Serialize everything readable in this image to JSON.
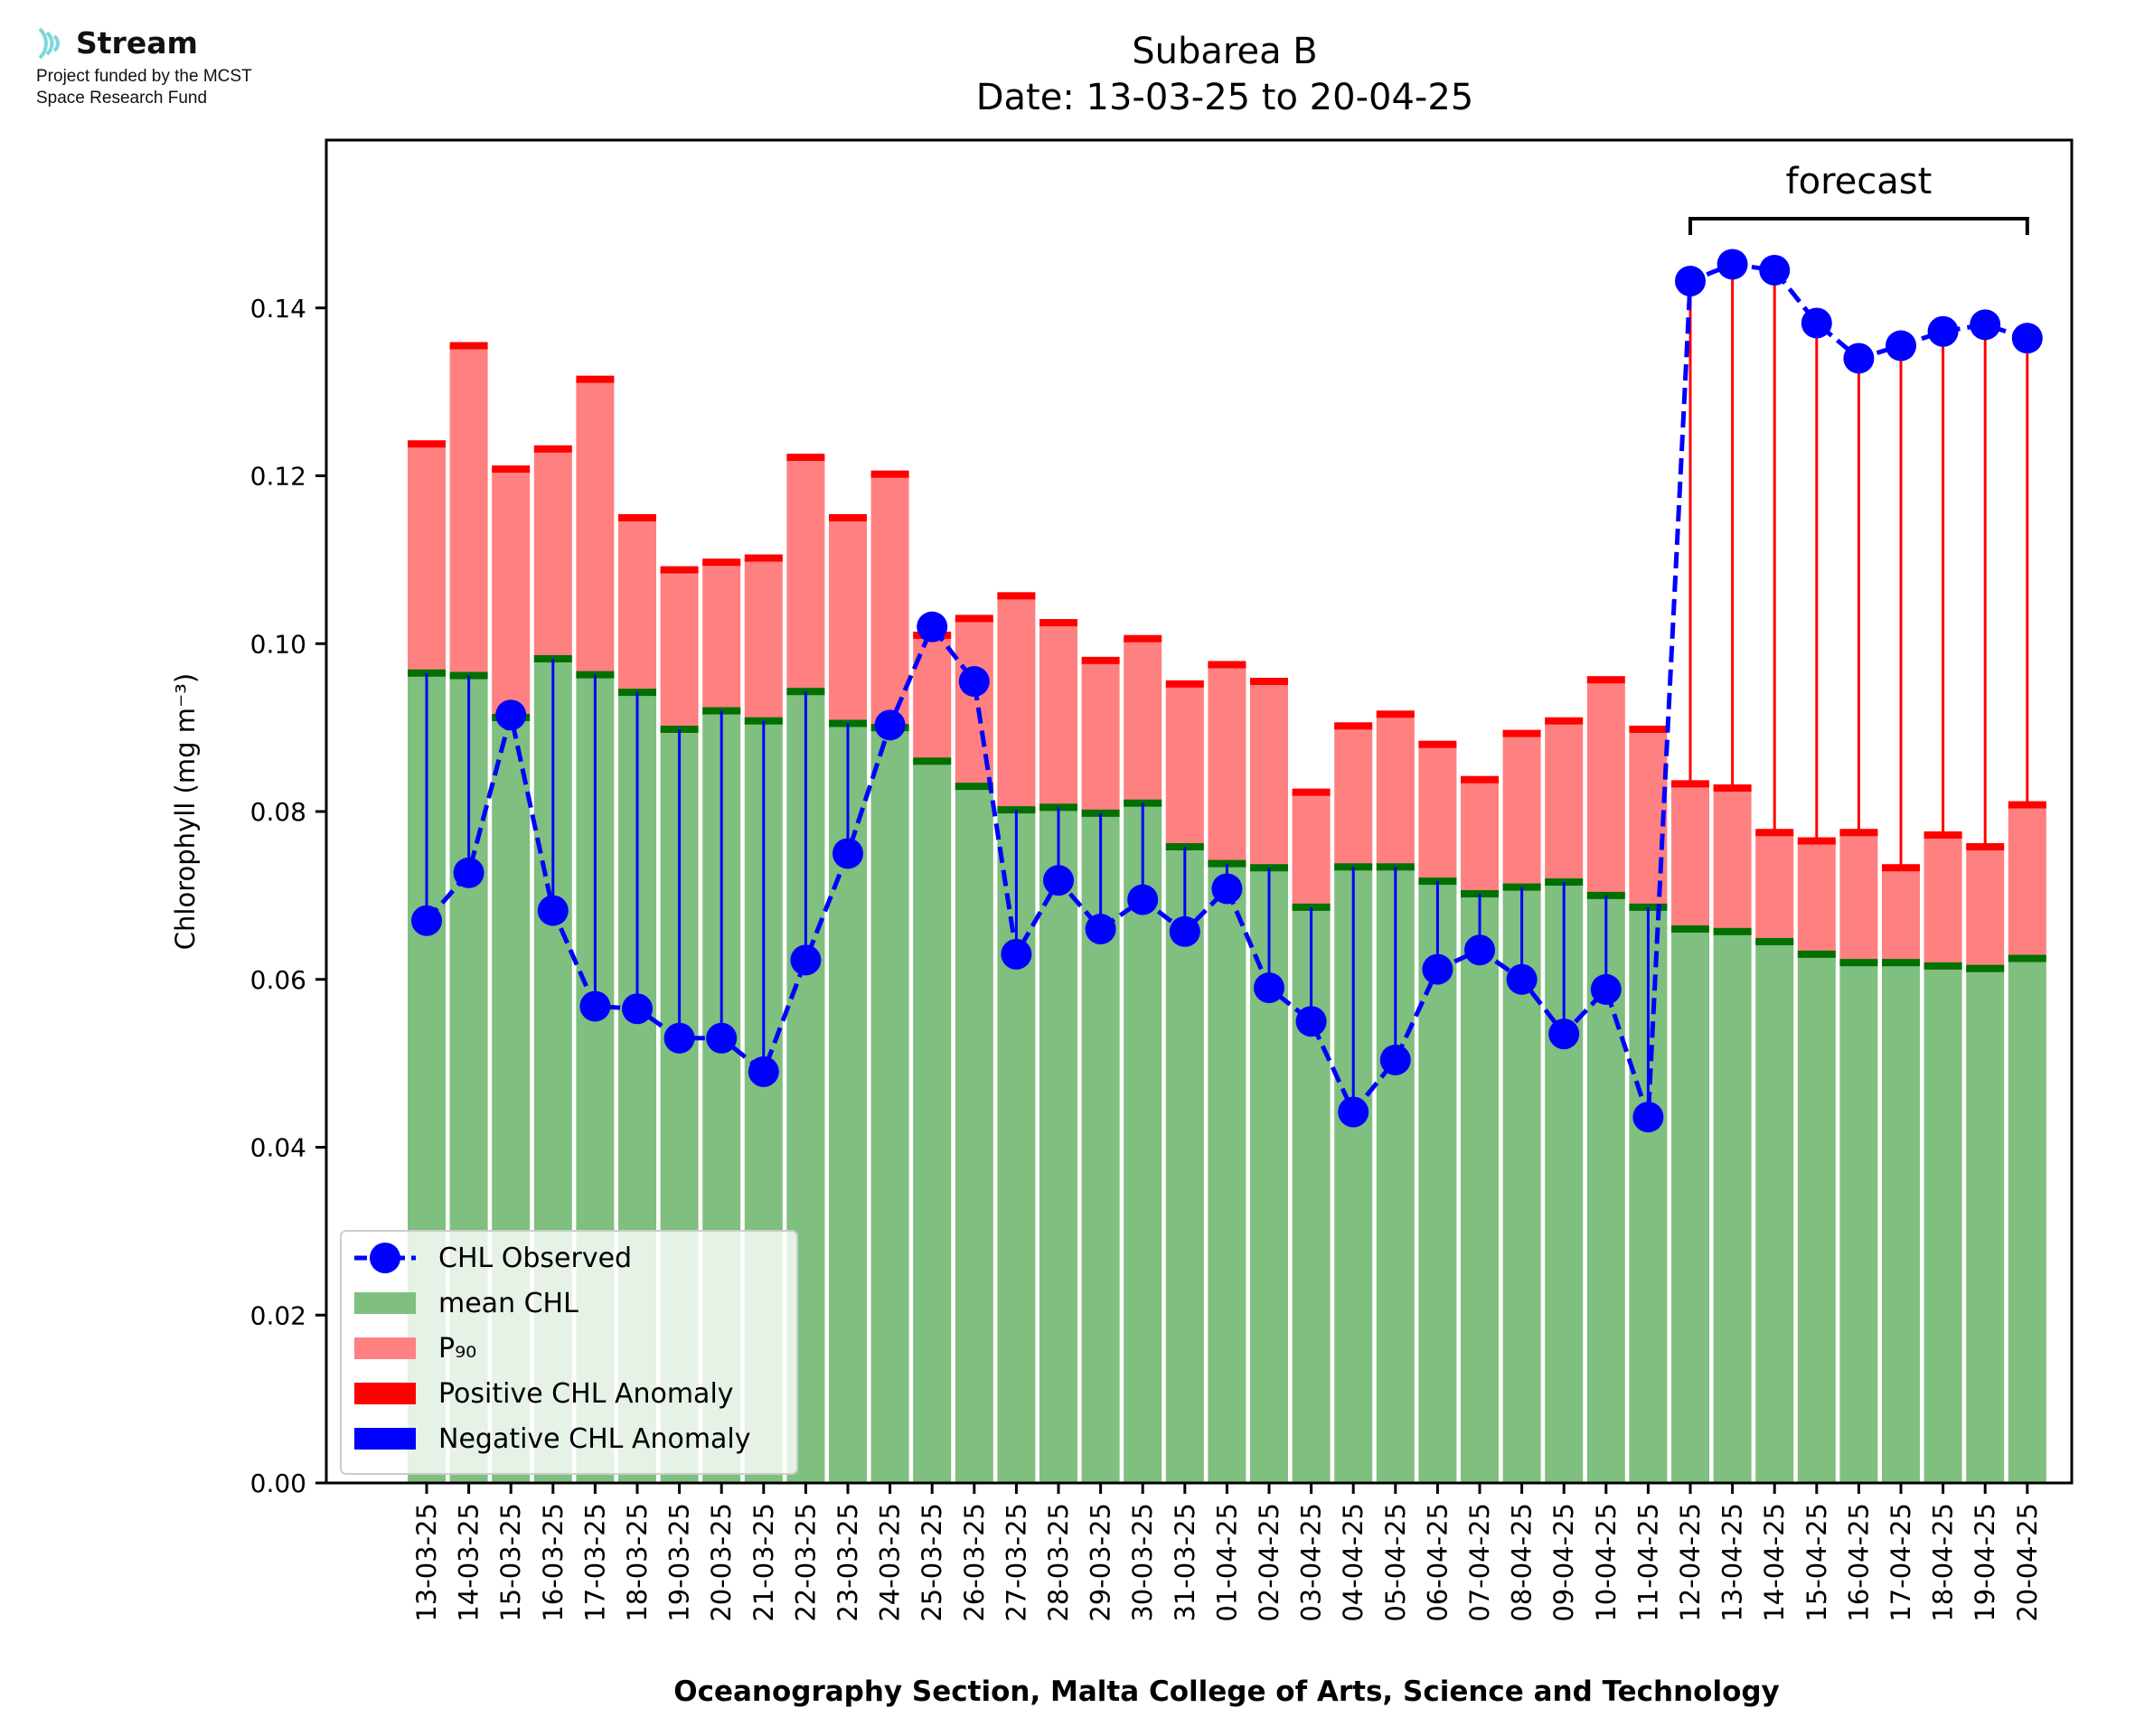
{
  "logo": {
    "brand": "Stream",
    "line1": "Project funded by the MCST",
    "line2": "Space Research Fund",
    "icon": "stream-waves-icon",
    "color": "#7fd8d8"
  },
  "chart_data": {
    "type": "bar",
    "title_line1": "Subarea B",
    "title_line2": "Date: 13-03-25 to 20-04-25",
    "xlabel": "Oceanography Section, Malta College of Arts, Science and Technology",
    "ylabel": "Chlorophyll (mg m⁻³)",
    "ylim": [
      0,
      0.16
    ],
    "yticks": [
      "0.00",
      "0.02",
      "0.04",
      "0.06",
      "0.08",
      "0.10",
      "0.12",
      "0.14"
    ],
    "ytick_values": [
      0,
      0.02,
      0.04,
      0.06,
      0.08,
      0.1,
      0.12,
      0.14
    ],
    "forecast_label": "forecast",
    "forecast_range": [
      "12-04-25",
      "20-04-25"
    ],
    "categories": [
      "13-03-25",
      "14-03-25",
      "15-03-25",
      "16-03-25",
      "17-03-25",
      "18-03-25",
      "19-03-25",
      "20-03-25",
      "21-03-25",
      "22-03-25",
      "23-03-25",
      "24-03-25",
      "25-03-25",
      "26-03-25",
      "27-03-25",
      "28-03-25",
      "29-03-25",
      "30-03-25",
      "31-03-25",
      "01-04-25",
      "02-04-25",
      "03-04-25",
      "04-04-25",
      "05-04-25",
      "06-04-25",
      "07-04-25",
      "08-04-25",
      "09-04-25",
      "10-04-25",
      "11-04-25",
      "12-04-25",
      "13-04-25",
      "14-04-25",
      "15-04-25",
      "16-04-25",
      "17-04-25",
      "18-04-25",
      "19-04-25",
      "20-04-25"
    ],
    "series": [
      {
        "name": "mean CHL",
        "color": "#7fbf7f",
        "edge": "#007000",
        "values": [
          0.0965,
          0.0962,
          0.0912,
          0.0982,
          0.0963,
          0.0942,
          0.0898,
          0.092,
          0.0908,
          0.0943,
          0.0905,
          0.09,
          0.086,
          0.083,
          0.0802,
          0.0805,
          0.0798,
          0.081,
          0.0758,
          0.0738,
          0.0733,
          0.0686,
          0.0734,
          0.0734,
          0.0717,
          0.0702,
          0.071,
          0.0716,
          0.07,
          0.0686,
          0.066,
          0.0657,
          0.0645,
          0.063,
          0.062,
          0.062,
          0.0616,
          0.0613,
          0.0625
        ]
      },
      {
        "name": "P₉₀",
        "color": "#ff8080",
        "edge": "#ff0000",
        "values": [
          0.1238,
          0.1355,
          0.1208,
          0.1232,
          0.1315,
          0.115,
          0.1088,
          0.1097,
          0.1102,
          0.1222,
          0.115,
          0.1202,
          0.101,
          0.103,
          0.1057,
          0.1025,
          0.098,
          0.1006,
          0.0952,
          0.0975,
          0.0955,
          0.0823,
          0.0902,
          0.0916,
          0.088,
          0.0838,
          0.0893,
          0.0908,
          0.0957,
          0.0898,
          0.0833,
          0.0828,
          0.0775,
          0.0765,
          0.0775,
          0.0733,
          0.0772,
          0.0758,
          0.0808
        ]
      },
      {
        "name": "CHL Observed",
        "color": "#0000ff",
        "values": [
          0.067,
          0.0727,
          0.0915,
          0.0682,
          0.0568,
          0.0565,
          0.053,
          0.053,
          0.049,
          0.0623,
          0.075,
          0.0903,
          0.102,
          0.0955,
          0.063,
          0.0718,
          0.066,
          0.0695,
          0.0657,
          0.0708,
          0.059,
          0.055,
          0.0442,
          0.0504,
          0.0612,
          0.0635,
          0.06,
          0.0535,
          0.0588,
          0.0436,
          0.1432,
          0.1452,
          0.1445,
          0.1382,
          0.134,
          0.1355,
          0.1372,
          0.138,
          0.1364
        ]
      }
    ],
    "anomaly_positive": {
      "name": "Positive CHL Anomaly",
      "color": "#ff0000"
    },
    "anomaly_negative": {
      "name": "Negative CHL Anomaly",
      "color": "#0000ff"
    },
    "legend": [
      "CHL Observed",
      "mean CHL",
      "P₉₀",
      "Positive CHL Anomaly",
      "Negative CHL Anomaly"
    ],
    "legend_position": "lower-left",
    "grid": false
  }
}
